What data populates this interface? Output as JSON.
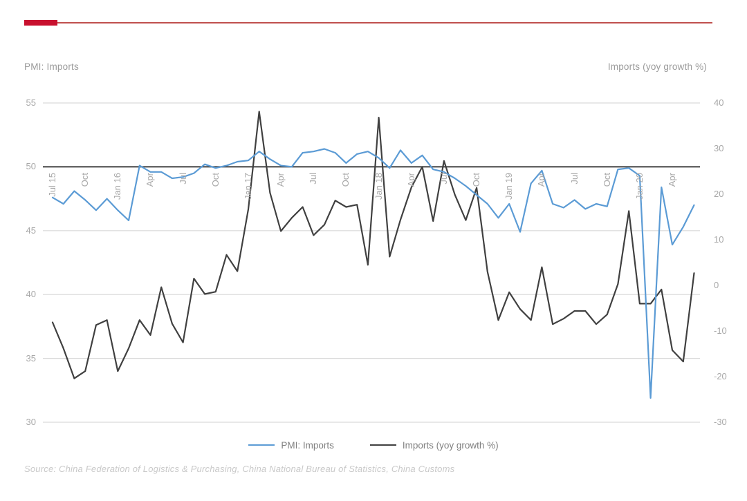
{
  "header": {
    "accent_bar_color": "#C8102E",
    "rule_color": "#C0504D"
  },
  "axis_titles": {
    "left": "PMI: Imports",
    "right": "Imports (yoy growth %)"
  },
  "legend": {
    "items": [
      {
        "label": "PMI: Imports",
        "color": "#5B9BD5"
      },
      {
        "label": "Imports (yoy growth %)",
        "color": "#404040"
      }
    ]
  },
  "footer": {
    "source": "Source: China Federation of Logistics & Purchasing, China National Bureau of Statistics, China Customs"
  },
  "style": {
    "gridline_color": "#D9D9D9",
    "reference_line_color": "#404040",
    "tick_label_color": "#A8A8A8",
    "axis_title_color": "#9B9B9B",
    "legend_text_color": "#808080",
    "source_text_color": "#C9C9C9"
  },
  "chart_data": {
    "type": "line",
    "title": "",
    "categories": [
      "Jul 15",
      "Aug 15",
      "Sep 15",
      "Oct 15",
      "Nov 15",
      "Dec 15",
      "Jan 16",
      "Feb 16",
      "Mar 16",
      "Apr 16",
      "May 16",
      "Jun 16",
      "Jul 16",
      "Aug 16",
      "Sep 16",
      "Oct 16",
      "Nov 16",
      "Dec 16",
      "Jan 17",
      "Feb 17",
      "Mar 17",
      "Apr 17",
      "May 17",
      "Jun 17",
      "Jul 17",
      "Aug 17",
      "Sep 17",
      "Oct 17",
      "Nov 17",
      "Dec 17",
      "Jan 18",
      "Feb 18",
      "Mar 18",
      "Apr 18",
      "May 18",
      "Jun 18",
      "Jul 18",
      "Aug 18",
      "Sep 18",
      "Oct 18",
      "Nov 18",
      "Dec 18",
      "Jan 19",
      "Feb 19",
      "Mar 19",
      "Apr 19",
      "May 19",
      "Jun 19",
      "Jul 19",
      "Aug 19",
      "Sep 19",
      "Oct 19",
      "Nov 19",
      "Dec 19",
      "Jan 20",
      "Feb 20",
      "Mar 20",
      "Apr 20",
      "May 20",
      "Jun 20"
    ],
    "x_tick_labels": [
      "Jul 15",
      "Oct",
      "Jan 16",
      "Apr",
      "Jul",
      "Oct",
      "Jan 17",
      "Apr",
      "Jul",
      "Oct",
      "Jan 18",
      "Apr",
      "Jul",
      "Oct",
      "Jan 19",
      "Apr",
      "Jul",
      "Oct",
      "Jan 20",
      "Apr"
    ],
    "x_ticks_every_n_points": 3,
    "left_axis": {
      "title": "PMI: Imports",
      "min": 30,
      "max": 55,
      "ticks": [
        55,
        50,
        45,
        40,
        35,
        30
      ],
      "reference_line_value": 50
    },
    "right_axis": {
      "title": "Imports (yoy growth %)",
      "min": -30,
      "max": 40,
      "ticks": [
        40,
        30,
        20,
        10,
        0,
        -10,
        -20,
        -30
      ]
    },
    "grid": "horizontal-only",
    "legend_position": "bottom",
    "series": [
      {
        "name": "Imports (yoy growth %)",
        "axis": "right",
        "color": "#404040",
        "values": [
          -8.1,
          -13.8,
          -20.4,
          -18.8,
          -8.7,
          -7.6,
          -18.8,
          -13.8,
          -7.6,
          -10.9,
          -0.4,
          -8.4,
          -12.5,
          1.5,
          -1.9,
          -1.4,
          6.7,
          3.1,
          16.7,
          38.1,
          20.3,
          11.9,
          14.8,
          17.2,
          11.0,
          13.3,
          18.6,
          17.2,
          17.7,
          4.5,
          36.8,
          6.3,
          14.4,
          21.5,
          26.0,
          14.1,
          27.3,
          19.9,
          14.3,
          21.4,
          3.0,
          -7.6,
          -1.5,
          -5.2,
          -7.6,
          4.0,
          -8.5,
          -7.3,
          -5.6,
          -5.6,
          -8.5,
          -6.4,
          0.3,
          16.3,
          -4.0,
          -4.0,
          -0.9,
          -14.2,
          -16.7,
          2.7
        ]
      },
      {
        "name": "PMI: Imports",
        "axis": "left",
        "color": "#5B9BD5",
        "values": [
          47.6,
          47.1,
          48.1,
          47.4,
          46.6,
          47.5,
          46.6,
          45.8,
          50.1,
          49.6,
          49.6,
          49.1,
          49.2,
          49.5,
          50.2,
          49.9,
          50.1,
          50.4,
          50.5,
          51.2,
          50.6,
          50.1,
          50.0,
          51.1,
          51.2,
          51.4,
          51.1,
          50.3,
          51.0,
          51.2,
          50.7,
          49.9,
          51.3,
          50.3,
          50.9,
          49.8,
          49.6,
          49.1,
          48.5,
          47.8,
          47.1,
          46.0,
          47.1,
          44.9,
          48.7,
          49.7,
          47.1,
          46.8,
          47.4,
          46.7,
          47.1,
          46.9,
          49.8,
          49.9,
          49.3,
          31.9,
          48.4,
          43.9,
          45.3,
          47.0
        ]
      }
    ]
  }
}
